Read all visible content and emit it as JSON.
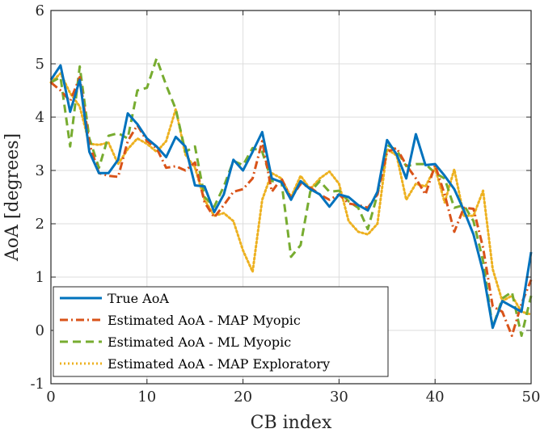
{
  "chart_data": {
    "type": "line",
    "title": "",
    "xlabel": "CB index",
    "ylabel": "AoA [degrees]",
    "xlim": [
      0,
      50
    ],
    "ylim": [
      -1,
      6
    ],
    "xticks": [
      0,
      10,
      20,
      30,
      40,
      50
    ],
    "yticks": [
      -1,
      0,
      1,
      2,
      3,
      4,
      5,
      6
    ],
    "grid": true,
    "legend_position": "bottom-left",
    "x": [
      0,
      1,
      2,
      3,
      4,
      5,
      6,
      7,
      8,
      9,
      10,
      11,
      12,
      13,
      14,
      15,
      16,
      17,
      18,
      19,
      20,
      21,
      22,
      23,
      24,
      25,
      26,
      27,
      28,
      29,
      30,
      31,
      32,
      33,
      34,
      35,
      36,
      37,
      38,
      39,
      40,
      41,
      42,
      43,
      44,
      45,
      46,
      47,
      48,
      49,
      50
    ],
    "series": [
      {
        "name": "True AoA",
        "color": "#0072BD",
        "style": "solid",
        "values": [
          4.7,
          4.97,
          4.1,
          4.7,
          3.35,
          2.95,
          2.95,
          3.2,
          4.07,
          3.87,
          3.6,
          3.45,
          3.25,
          3.63,
          3.45,
          2.72,
          2.7,
          2.22,
          2.55,
          3.2,
          3.0,
          3.35,
          3.72,
          2.85,
          2.78,
          2.45,
          2.8,
          2.65,
          2.55,
          2.32,
          2.55,
          2.5,
          2.35,
          2.25,
          2.6,
          3.57,
          3.3,
          2.85,
          3.68,
          3.1,
          3.12,
          2.9,
          2.65,
          2.25,
          1.8,
          1.1,
          0.05,
          0.55,
          0.45,
          0.35,
          1.47
        ]
      },
      {
        "name": "Estimated AoA - MAP Myopic",
        "color": "#D95319",
        "style": "dashdot",
        "values": [
          4.65,
          4.5,
          4.3,
          4.75,
          3.5,
          2.95,
          2.9,
          2.88,
          3.55,
          3.85,
          3.55,
          3.42,
          3.05,
          3.08,
          3.0,
          3.15,
          2.4,
          2.12,
          2.35,
          2.6,
          2.65,
          2.85,
          3.55,
          2.6,
          2.85,
          2.48,
          2.75,
          2.68,
          2.55,
          2.45,
          2.55,
          2.38,
          2.35,
          2.3,
          2.55,
          3.35,
          3.42,
          3.1,
          2.85,
          2.55,
          3.1,
          2.55,
          1.85,
          2.3,
          2.28,
          1.55,
          0.45,
          0.35,
          -0.1,
          0.5,
          0.95
        ]
      },
      {
        "name": "Estimated AoA - ML Myopic",
        "color": "#77AC30",
        "style": "dash",
        "values": [
          4.65,
          4.75,
          3.45,
          4.95,
          3.6,
          3.05,
          3.65,
          3.7,
          3.6,
          4.5,
          4.55,
          5.1,
          4.6,
          4.15,
          3.35,
          3.45,
          2.5,
          2.32,
          2.7,
          3.18,
          3.1,
          3.42,
          3.35,
          2.8,
          2.8,
          1.38,
          1.6,
          2.6,
          2.8,
          2.6,
          2.62,
          2.42,
          2.3,
          1.9,
          2.55,
          3.48,
          3.38,
          3.08,
          3.12,
          3.12,
          2.95,
          2.85,
          2.3,
          2.35,
          2.05,
          1.3,
          0.05,
          0.6,
          0.72,
          -0.1,
          0.65
        ]
      },
      {
        "name": "Estimated AoA - MAP Exploratory",
        "color": "#EDB120",
        "style": "dotted",
        "values": [
          4.65,
          4.82,
          4.45,
          4.2,
          3.5,
          3.48,
          3.52,
          3.12,
          3.4,
          3.6,
          3.5,
          3.35,
          3.55,
          4.15,
          3.3,
          3.05,
          2.45,
          2.15,
          2.2,
          2.05,
          1.5,
          1.1,
          2.45,
          2.95,
          2.85,
          2.5,
          2.9,
          2.65,
          2.85,
          2.98,
          2.75,
          2.05,
          1.85,
          1.8,
          2.0,
          3.4,
          3.28,
          2.45,
          2.75,
          2.7,
          3.05,
          2.4,
          3.02,
          2.15,
          2.15,
          2.62,
          1.15,
          0.55,
          0.65,
          0.35,
          0.3
        ]
      }
    ]
  }
}
